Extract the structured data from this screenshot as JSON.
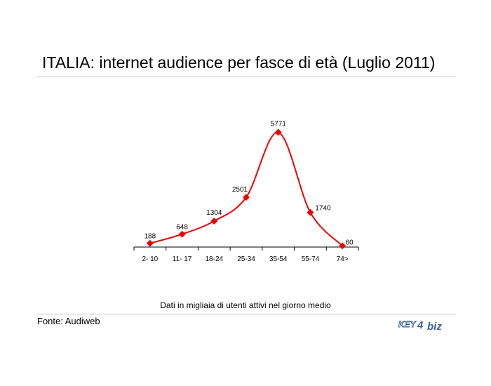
{
  "title": "ITALIA: internet audience per fasce di età (Luglio 2011)",
  "note": "Dati in migliaia di utenti attivi nel giorno medio",
  "source": "Fonte: Audiweb",
  "logo": {
    "part1": "KEY",
    "part2": "biz",
    "glyph": "4",
    "color": "#3a5f9a"
  },
  "chart_data": {
    "type": "line",
    "categories": [
      "2- 10",
      "11- 17",
      "18-24",
      "25-34",
      "35-54",
      "55-74",
      "74>"
    ],
    "values": [
      188,
      648,
      1304,
      2501,
      5771,
      1740,
      60
    ],
    "color": "#ee0000",
    "smooth": true,
    "ylim": [
      0,
      6000
    ],
    "grid": false,
    "title": "",
    "xlabel": "",
    "ylabel": ""
  }
}
